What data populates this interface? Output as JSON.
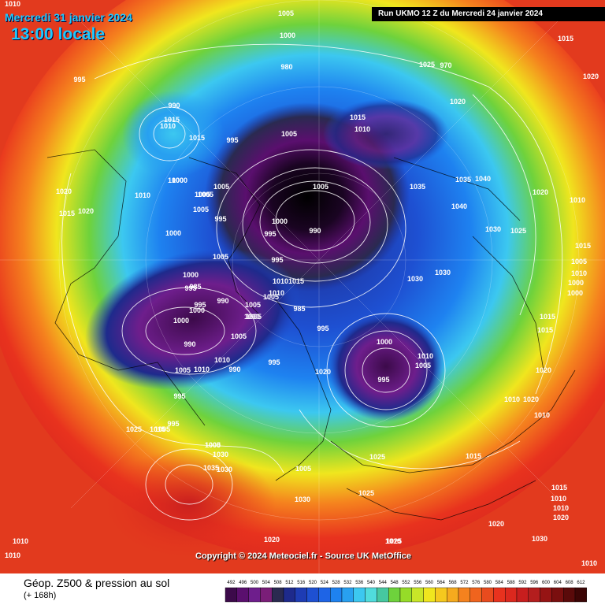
{
  "header": {
    "date": "Mercredi 31 janvier 2024",
    "time": "13:00 locale",
    "run": "Run UKMO 12 Z du Mercredi 24 janvier 2024"
  },
  "copyright": "Copyright © 2024 Meteociel.fr - Source UK MetOffice",
  "footer": {
    "title": "Géop. Z500 & pression au sol",
    "subtitle": "(+ 168h)"
  },
  "colors": {
    "outer_warm": "#e8321e",
    "orange": "#f5821e",
    "yellow": "#f0e61e",
    "green": "#6ed23c",
    "cyan": "#3cc8f0",
    "blue": "#1e64e6",
    "dark_blue": "#1e2a8c",
    "purple": "#6e1e8c",
    "deep_purple": "#3c0a4a",
    "black_core": "#000000"
  },
  "legend_labels": [
    "492",
    "496",
    "500",
    "504",
    "508",
    "512",
    "516",
    "520",
    "524",
    "528",
    "532",
    "536",
    "540",
    "544",
    "548",
    "552",
    "556",
    "560",
    "564",
    "568",
    "572",
    "576",
    "580",
    "584",
    "588",
    "592",
    "596",
    "600",
    "604",
    "608",
    "612"
  ],
  "legend_colors": [
    "#3c0a4a",
    "#5a0f6e",
    "#6e1e8c",
    "#7a1e78",
    "#2a2a50",
    "#1e2a8c",
    "#1e3cb4",
    "#1e50d2",
    "#1e64e6",
    "#1e82f0",
    "#28a0f0",
    "#3cc8f0",
    "#50dcdc",
    "#46c8a0",
    "#6ed23c",
    "#96dc28",
    "#c8e628",
    "#f0e61e",
    "#f5c81e",
    "#f5aa1e",
    "#f5821e",
    "#f0641e",
    "#e84b1e",
    "#e8321e",
    "#dc281e",
    "#c81e1e",
    "#b41e1e",
    "#961414",
    "#7a0f0f",
    "#5a0a0a",
    "#3c0505"
  ],
  "pressure_labels": [
    "1010",
    "1005",
    "1000",
    "1015",
    "995",
    "980",
    "970",
    "990",
    "1015",
    "1010",
    "1020",
    "1015",
    "1010",
    "1015",
    "1000",
    "1005",
    "995",
    "1005",
    "1000",
    "1005",
    "1005",
    "995",
    "1005",
    "1020",
    "1015",
    "1020",
    "1010",
    "1000",
    "1005",
    "995",
    "1000",
    "985",
    "990",
    "995",
    "1000",
    "990",
    "1005",
    "1010",
    "1015",
    "1010",
    "1005",
    "1025",
    "1035",
    "1035",
    "1040",
    "1040",
    "1030",
    "1025",
    "1020",
    "1010",
    "1015",
    "1030",
    "1030",
    "1010",
    "1000",
    "1000",
    "995",
    "1000",
    "1000",
    "1000",
    "995",
    "990",
    "1005",
    "1005",
    "1005",
    "995",
    "1010",
    "1010",
    "1005",
    "995",
    "990",
    "985",
    "995",
    "1020",
    "1000",
    "1010",
    "1005",
    "995",
    "1015",
    "1020",
    "1020",
    "1010",
    "1025",
    "1015",
    "1005",
    "1000",
    "1030",
    "1035",
    "1030",
    "1030",
    "1025",
    "1020",
    "1015",
    "1010",
    "1020",
    "1030",
    "1010",
    "1020",
    "1025",
    "1015",
    "1010",
    "1010",
    "1010",
    "1005",
    "1010",
    "1020",
    "1025",
    "1015",
    "1010",
    "1005",
    "995",
    "1005",
    "1005"
  ]
}
